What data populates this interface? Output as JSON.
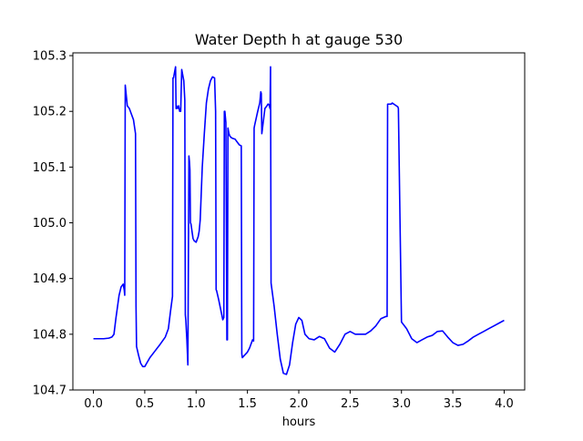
{
  "chart_data": {
    "type": "line",
    "title": "Water Depth h at gauge 530",
    "xlabel": "hours",
    "ylabel": "",
    "xlim": [
      -0.2,
      4.2
    ],
    "ylim": [
      104.7,
      105.305
    ],
    "xticks": [
      0.0,
      0.5,
      1.0,
      1.5,
      2.0,
      2.5,
      3.0,
      3.5,
      4.0
    ],
    "xtick_labels": [
      "0.0",
      "0.5",
      "1.0",
      "1.5",
      "2.0",
      "2.5",
      "3.0",
      "3.5",
      "4.0"
    ],
    "yticks": [
      104.7,
      104.8,
      104.9,
      105.0,
      105.1,
      105.2,
      105.3
    ],
    "ytick_labels": [
      "104.7",
      "104.8",
      "104.9",
      "105.0",
      "105.1",
      "105.2",
      "105.3"
    ],
    "grid": false,
    "series": [
      {
        "color": "#0000ff",
        "x": [
          0.0,
          0.05,
          0.1,
          0.15,
          0.18,
          0.2,
          0.22,
          0.25,
          0.27,
          0.29,
          0.3,
          0.305,
          0.31,
          0.33,
          0.35,
          0.37,
          0.39,
          0.41,
          0.415,
          0.42,
          0.44,
          0.46,
          0.48,
          0.5,
          0.55,
          0.6,
          0.65,
          0.7,
          0.73,
          0.75,
          0.77,
          0.775,
          0.78,
          0.79,
          0.8,
          0.805,
          0.81,
          0.82,
          0.83,
          0.84,
          0.85,
          0.86,
          0.88,
          0.89,
          0.895,
          0.9,
          0.91,
          0.92,
          0.93,
          0.935,
          0.94,
          0.945,
          0.95,
          0.96,
          0.97,
          0.98,
          1.0,
          1.02,
          1.03,
          1.04,
          1.06,
          1.08,
          1.1,
          1.12,
          1.14,
          1.16,
          1.18,
          1.19,
          1.195,
          1.2,
          1.21,
          1.22,
          1.25,
          1.26,
          1.27,
          1.275,
          1.28,
          1.29,
          1.3,
          1.305,
          1.31,
          1.32,
          1.33,
          1.35,
          1.38,
          1.4,
          1.42,
          1.44,
          1.445,
          1.45,
          1.47,
          1.5,
          1.52,
          1.55,
          1.56,
          1.565,
          1.57,
          1.6,
          1.62,
          1.63,
          1.635,
          1.64,
          1.65,
          1.67,
          1.69,
          1.7,
          1.71,
          1.72,
          1.725,
          1.73,
          1.76,
          1.79,
          1.82,
          1.85,
          1.88,
          1.91,
          1.94,
          1.97,
          2.0,
          2.03,
          2.06,
          2.1,
          2.15,
          2.2,
          2.25,
          2.3,
          2.35,
          2.4,
          2.45,
          2.5,
          2.55,
          2.6,
          2.65,
          2.7,
          2.75,
          2.8,
          2.85,
          2.86,
          2.865,
          2.9,
          2.91,
          2.95,
          2.965,
          2.97,
          3.0,
          3.05,
          3.1,
          3.15,
          3.2,
          3.25,
          3.3,
          3.35,
          3.4,
          3.45,
          3.5,
          3.55,
          3.6,
          3.65,
          3.7,
          3.75,
          3.8,
          3.85,
          3.9,
          3.95,
          4.0
        ],
        "y": [
          104.792,
          104.792,
          104.792,
          104.793,
          104.795,
          104.8,
          104.83,
          104.87,
          104.885,
          104.89,
          104.88,
          104.87,
          105.247,
          105.21,
          105.205,
          105.195,
          105.185,
          105.16,
          104.85,
          104.778,
          104.762,
          104.748,
          104.742,
          104.742,
          104.758,
          104.77,
          104.782,
          104.795,
          104.81,
          104.84,
          104.868,
          105.26,
          105.26,
          105.27,
          105.28,
          105.205,
          105.21,
          105.205,
          105.21,
          105.2,
          105.2,
          105.275,
          105.255,
          105.22,
          104.835,
          104.825,
          104.79,
          104.745,
          105.12,
          105.11,
          105.095,
          105.0,
          104.998,
          104.985,
          104.972,
          104.968,
          104.965,
          104.975,
          104.985,
          105.005,
          105.1,
          105.16,
          105.215,
          105.24,
          105.255,
          105.262,
          105.26,
          105.2,
          104.88,
          104.878,
          104.87,
          104.862,
          104.835,
          104.826,
          104.83,
          105.2,
          105.2,
          105.18,
          104.79,
          104.79,
          105.17,
          105.16,
          105.155,
          105.152,
          105.15,
          105.145,
          105.14,
          105.138,
          104.765,
          104.758,
          104.762,
          104.768,
          104.775,
          104.79,
          104.788,
          105.17,
          105.175,
          105.2,
          105.215,
          105.235,
          105.232,
          105.16,
          105.175,
          105.205,
          105.21,
          105.213,
          105.212,
          105.205,
          105.28,
          104.892,
          104.85,
          104.8,
          104.755,
          104.73,
          104.728,
          104.745,
          104.785,
          104.818,
          104.83,
          104.825,
          104.8,
          104.792,
          104.79,
          104.796,
          104.792,
          104.775,
          104.768,
          104.782,
          104.8,
          104.805,
          104.8,
          104.8,
          104.8,
          104.806,
          104.815,
          104.828,
          104.832,
          104.832,
          105.213,
          105.213,
          105.215,
          105.21,
          105.208,
          105.205,
          104.822,
          104.81,
          104.792,
          104.785,
          104.79,
          104.795,
          104.798,
          104.805,
          104.806,
          104.795,
          104.785,
          104.78,
          104.782,
          104.788,
          104.795,
          104.8,
          104.805,
          104.81,
          104.815,
          104.82,
          104.825
        ]
      }
    ]
  }
}
